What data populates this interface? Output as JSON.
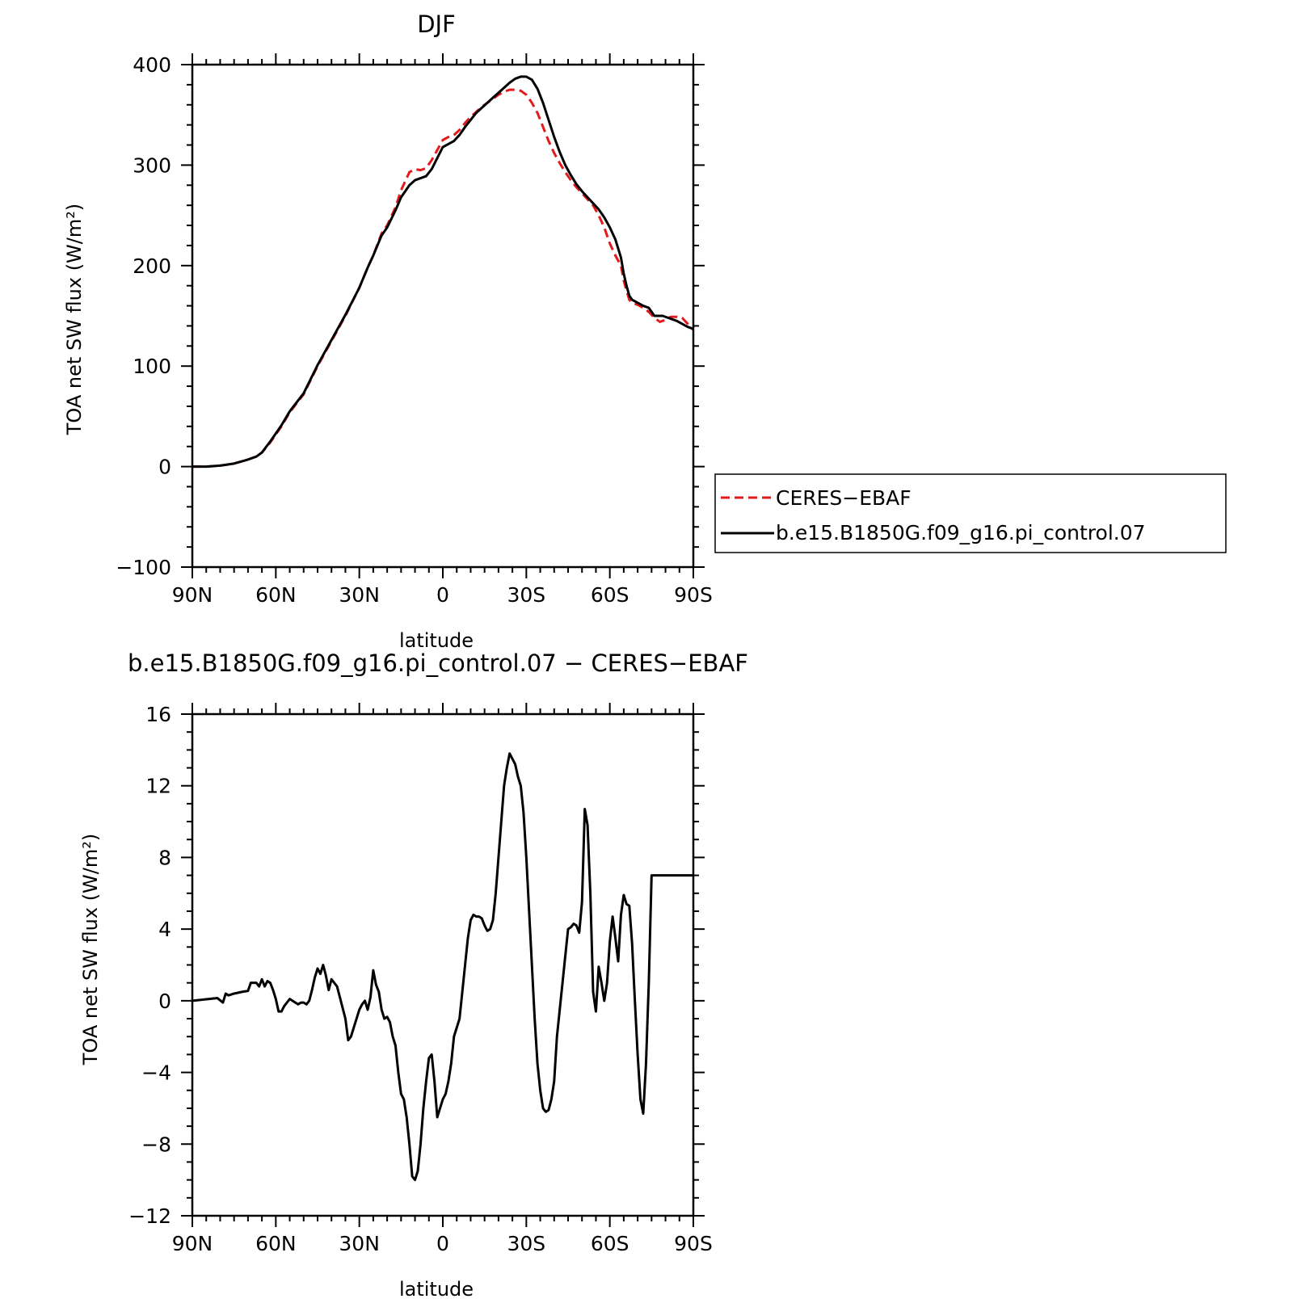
{
  "chart_data": [
    {
      "type": "line",
      "title": "DJF",
      "xlabel": "latitude",
      "ylabel": "TOA net SW flux (W/m²)",
      "x_tick_labels": [
        "90N",
        "60N",
        "30N",
        "0",
        "30S",
        "60S",
        "90S"
      ],
      "x_ticks": [
        -90,
        -60,
        -30,
        0,
        30,
        60,
        90
      ],
      "y_ticks": [
        -100,
        0,
        100,
        200,
        300,
        400
      ],
      "y_tick_labels": [
        "−100",
        "0",
        "100",
        "200",
        "300",
        "400"
      ],
      "xlim": [
        -90,
        90
      ],
      "ylim": [
        -100,
        400
      ],
      "legend_position": "right",
      "series": [
        {
          "name": "CERES−EBAF",
          "color": "#e31a1c",
          "dash": "dashed",
          "x": [
            -90,
            -85,
            -80,
            -75,
            -70,
            -67,
            -65,
            -62,
            -58,
            -55,
            -50,
            -45,
            -40,
            -35,
            -30,
            -27,
            -25,
            -22,
            -20,
            -17,
            -15,
            -12,
            -10,
            -8,
            -6,
            -4,
            -2,
            0,
            2,
            4,
            6,
            8,
            10,
            12,
            14,
            16,
            18,
            20,
            22,
            24,
            26,
            28,
            30,
            32,
            34,
            36,
            38,
            40,
            42,
            44,
            46,
            48,
            50,
            52,
            54,
            56,
            58,
            60,
            62,
            64,
            65,
            66,
            67,
            68,
            70,
            72,
            74,
            76,
            78,
            79,
            80,
            81,
            82,
            84,
            86,
            88,
            90
          ],
          "y": [
            0,
            0,
            1,
            3,
            7,
            10,
            14,
            24,
            40,
            54,
            72,
            100,
            125,
            150,
            178,
            198,
            210,
            232,
            240,
            258,
            275,
            293,
            296,
            295,
            297,
            305,
            315,
            325,
            328,
            330,
            335,
            342,
            348,
            353,
            358,
            362,
            366,
            370,
            373,
            375,
            375,
            374,
            370,
            362,
            352,
            338,
            324,
            312,
            302,
            293,
            285,
            278,
            272,
            266,
            260,
            250,
            238,
            222,
            210,
            200,
            185,
            175,
            166,
            163,
            161,
            158,
            154,
            148,
            144,
            145,
            146,
            148,
            149,
            149,
            148,
            142,
            136
          ]
        },
        {
          "name": "b.e15.B1850G.f09_g16.pi_control.07",
          "color": "#000000",
          "dash": "solid",
          "x": [
            -90,
            -85,
            -80,
            -75,
            -70,
            -67,
            -65,
            -62,
            -58,
            -55,
            -50,
            -45,
            -40,
            -35,
            -30,
            -27,
            -25,
            -22,
            -20,
            -17,
            -15,
            -12,
            -10,
            -8,
            -6,
            -4,
            -2,
            0,
            2,
            4,
            6,
            8,
            10,
            12,
            14,
            16,
            18,
            20,
            22,
            24,
            26,
            28,
            30,
            32,
            34,
            36,
            38,
            40,
            42,
            44,
            46,
            48,
            50,
            52,
            54,
            56,
            58,
            60,
            62,
            64,
            65,
            66,
            67,
            68,
            70,
            72,
            74,
            76,
            78,
            79,
            80,
            81,
            82,
            84,
            86,
            88,
            90
          ],
          "y": [
            0,
            0,
            1,
            3,
            7,
            10,
            14,
            25,
            41,
            55,
            73,
            101,
            126,
            151,
            178,
            198,
            210,
            230,
            238,
            255,
            268,
            280,
            285,
            287,
            289,
            296,
            307,
            318,
            321,
            324,
            330,
            338,
            345,
            352,
            357,
            362,
            367,
            372,
            377,
            382,
            386,
            388,
            388,
            385,
            376,
            362,
            345,
            328,
            313,
            300,
            290,
            281,
            274,
            268,
            262,
            256,
            248,
            238,
            226,
            208,
            192,
            180,
            170,
            166,
            163,
            160,
            158,
            150,
            150,
            150,
            149,
            148,
            147,
            145,
            142,
            139,
            137
          ]
        }
      ]
    },
    {
      "type": "line",
      "title": "b.e15.B1850G.f09_g16.pi_control.07 − CERES−EBAF",
      "xlabel": "latitude",
      "ylabel": "TOA net SW flux (W/m²)",
      "x_tick_labels": [
        "90N",
        "60N",
        "30N",
        "0",
        "30S",
        "60S",
        "90S"
      ],
      "x_ticks": [
        -90,
        -60,
        -30,
        0,
        30,
        60,
        90
      ],
      "y_ticks": [
        -12,
        -8,
        -4,
        0,
        4,
        8,
        12,
        16
      ],
      "y_tick_labels": [
        "−12",
        "−8",
        "−4",
        "0",
        "4",
        "8",
        "12",
        "16"
      ],
      "xlim": [
        -90,
        90
      ],
      "ylim": [
        -12,
        16
      ],
      "series": [
        {
          "color": "#000000",
          "dash": "solid",
          "x": [
            -90,
            -87,
            -84,
            -81,
            -79,
            -78,
            -77,
            -75,
            -72,
            -70,
            -69,
            -67,
            -66,
            -65,
            -64,
            -63,
            -62,
            -61,
            -60,
            -59,
            -58,
            -57,
            -55,
            -54,
            -52,
            -51,
            -50,
            -49,
            -48,
            -47,
            -46,
            -45,
            -44,
            -43,
            -42,
            -41,
            -40,
            -39,
            -38,
            -37,
            -35,
            -34,
            -33,
            -32,
            -31,
            -30,
            -29,
            -28,
            -27,
            -26,
            -25,
            -24,
            -23,
            -22,
            -21,
            -20,
            -19,
            -18,
            -17,
            -16,
            -15,
            -14,
            -13,
            -12,
            -11,
            -10,
            -9,
            -8,
            -7,
            -6,
            -5,
            -4,
            -3,
            -2,
            -1,
            0,
            1,
            2,
            3,
            4,
            5,
            6,
            7,
            8,
            9,
            10,
            11,
            12,
            13,
            14,
            15,
            16,
            17,
            18,
            19,
            20,
            21,
            22,
            23,
            24,
            25,
            26,
            27,
            28,
            29,
            30,
            31,
            32,
            33,
            34,
            35,
            36,
            37,
            38,
            39,
            40,
            41,
            42,
            43,
            44,
            45,
            46,
            47,
            48,
            49,
            50,
            51,
            52,
            53,
            54,
            55,
            56,
            57,
            58,
            59,
            60,
            61,
            62,
            63,
            64,
            65,
            66,
            67,
            68,
            69,
            70,
            71,
            72,
            73,
            74,
            75,
            76,
            77,
            78,
            79,
            80,
            81,
            82,
            83,
            84,
            85,
            86,
            87,
            88,
            89,
            90
          ],
          "y": [
            0.0,
            0.05,
            0.1,
            0.15,
            -0.1,
            0.4,
            0.3,
            0.4,
            0.5,
            0.55,
            1.0,
            1.0,
            0.8,
            1.2,
            0.8,
            1.1,
            1.0,
            0.6,
            0.1,
            -0.6,
            -0.6,
            -0.3,
            0.1,
            0.0,
            -0.2,
            -0.1,
            -0.1,
            -0.2,
            0.0,
            0.6,
            1.3,
            1.8,
            1.5,
            2.0,
            1.4,
            0.6,
            1.2,
            1.0,
            0.8,
            0.2,
            -1.0,
            -2.2,
            -2.0,
            -1.5,
            -1.0,
            -0.5,
            -0.2,
            0.0,
            -0.5,
            0.2,
            1.7,
            0.9,
            0.5,
            -0.5,
            -1.0,
            -0.9,
            -1.2,
            -2.0,
            -2.5,
            -4.0,
            -5.2,
            -5.5,
            -6.5,
            -8.0,
            -9.8,
            -10.0,
            -9.5,
            -8.0,
            -6.0,
            -4.5,
            -3.2,
            -3.0,
            -4.5,
            -6.5,
            -6.0,
            -5.5,
            -5.2,
            -4.5,
            -3.5,
            -2.0,
            -1.5,
            -1.0,
            0.5,
            2.0,
            3.5,
            4.5,
            4.8,
            4.7,
            4.7,
            4.6,
            4.2,
            3.9,
            4.0,
            4.5,
            6.0,
            8.0,
            10.0,
            12.0,
            13.0,
            13.8,
            13.5,
            13.2,
            12.5,
            12.0,
            10.5,
            8.0,
            5.0,
            2.0,
            -1.0,
            -3.5,
            -5.0,
            -6.0,
            -6.2,
            -6.1,
            -5.5,
            -4.5,
            -2.0,
            -0.5,
            1.0,
            2.5,
            4.0,
            4.1,
            4.3,
            4.2,
            3.8,
            5.5,
            10.7,
            9.8,
            6.0,
            0.5,
            -0.6,
            1.9,
            1.0,
            0.0,
            1.0,
            3.3,
            4.7,
            3.5,
            2.2,
            4.8,
            5.9,
            5.4,
            5.3,
            3.2,
            0.0,
            -3.0,
            -5.5,
            -6.3,
            -3.5,
            1.0,
            7.0,
            7.0,
            7.0,
            7.0,
            7.0,
            7.0,
            7.0,
            7.0,
            7.0,
            7.0,
            7.0,
            7.0,
            7.0,
            7.0,
            7.0,
            7.0
          ]
        }
      ]
    }
  ]
}
